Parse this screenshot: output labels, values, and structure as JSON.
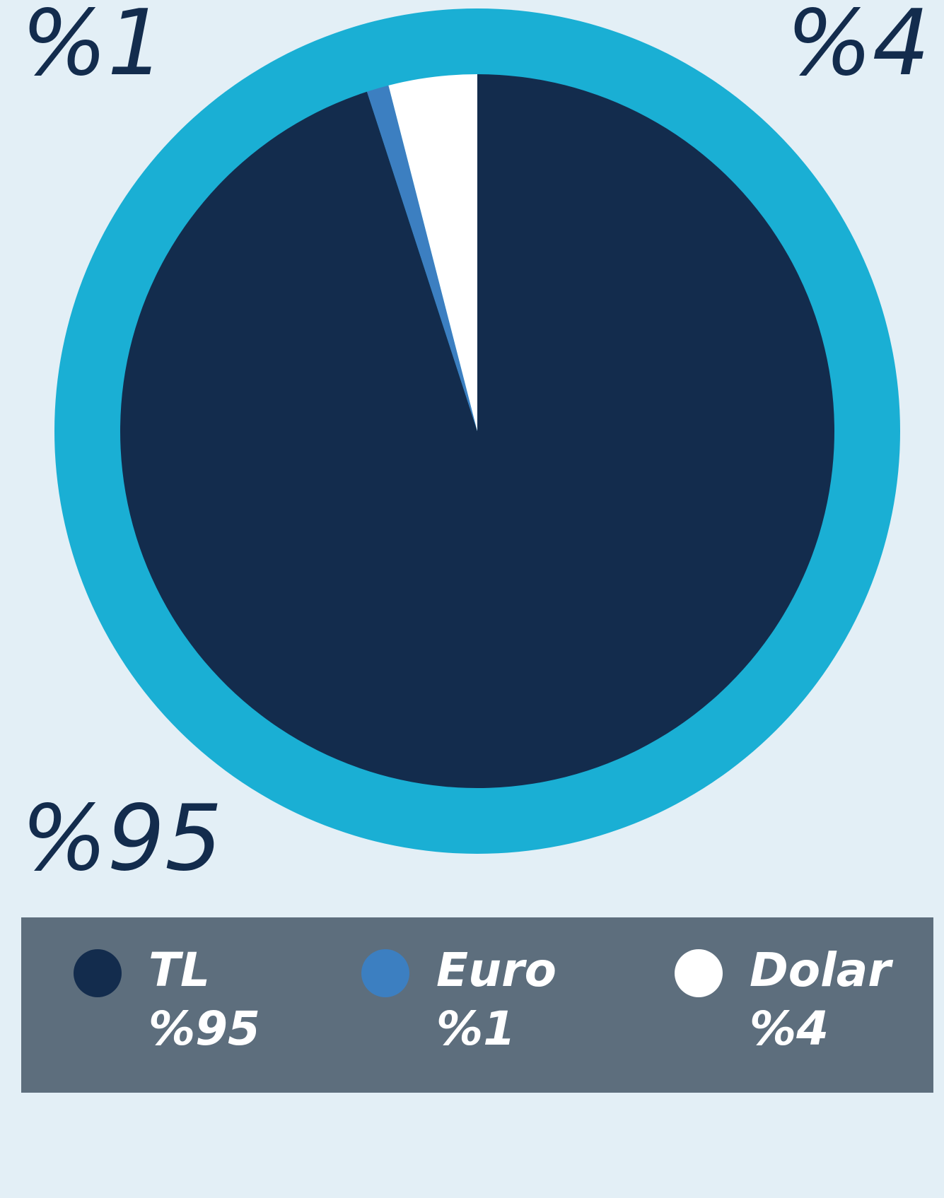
{
  "chart_data": {
    "type": "pie",
    "categories": [
      "TL",
      "Euro",
      "Dolar"
    ],
    "values": [
      95,
      1,
      4
    ],
    "value_labels": [
      "%95",
      "%1",
      "%4"
    ],
    "colors": [
      "#132c4d",
      "#3c7fc1",
      "#ffffff"
    ]
  }
}
